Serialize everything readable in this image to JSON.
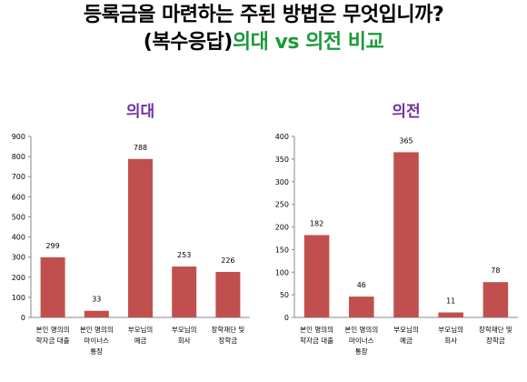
{
  "header": {
    "line1": "등록금을 마련하는 주된 방법은 무엇입니까?",
    "line2_prefix": "(복수응답)",
    "line2_accent": "의대 vs 의전 비교",
    "accent_color": "#1a9a3a"
  },
  "chart_data": [
    {
      "type": "bar",
      "title": "의대",
      "categories": [
        "본인 명의의 학자금 대출",
        "본인 명의의 마이너스 통장",
        "부모님의 예금",
        "부모님의 회사",
        "장학재단 및 장학금"
      ],
      "values": [
        299,
        33,
        788,
        253,
        226
      ],
      "ylim": [
        0,
        900
      ],
      "yticks": [
        0,
        100,
        200,
        300,
        400,
        500,
        600,
        700,
        800,
        900
      ],
      "bar_color": "#c0504d",
      "title_color": "#7030a0",
      "grid": false
    },
    {
      "type": "bar",
      "title": "의전",
      "categories": [
        "본인 명의의 학자금 대출",
        "본인 명의의 마이너스 통장",
        "부모님의 예금",
        "부모님의 회사",
        "장학재단 및 장학금"
      ],
      "values": [
        182,
        46,
        365,
        11,
        78
      ],
      "ylim": [
        0,
        400
      ],
      "yticks": [
        0,
        50,
        100,
        150,
        200,
        250,
        300,
        350,
        400
      ],
      "bar_color": "#c0504d",
      "title_color": "#7030a0",
      "grid": false
    }
  ]
}
